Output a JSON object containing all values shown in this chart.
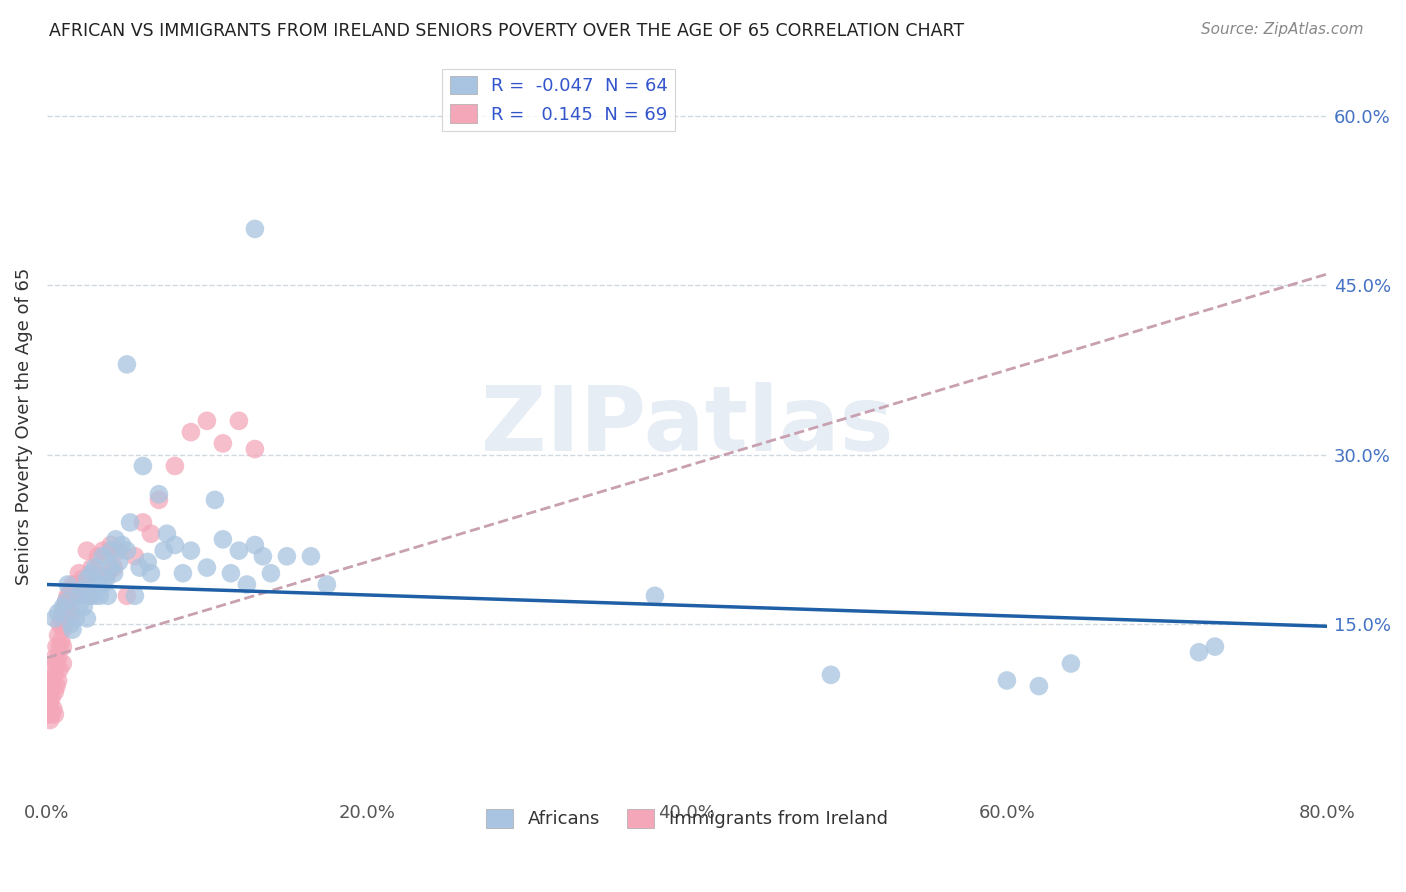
{
  "title": "AFRICAN VS IMMIGRANTS FROM IRELAND SENIORS POVERTY OVER THE AGE OF 65 CORRELATION CHART",
  "source": "Source: ZipAtlas.com",
  "ylabel": "Seniors Poverty Over the Age of 65",
  "xlim": [
    0,
    0.8
  ],
  "ylim": [
    0,
    0.65
  ],
  "yticks": [
    0.15,
    0.3,
    0.45,
    0.6
  ],
  "ytick_labels": [
    "15.0%",
    "30.0%",
    "45.0%",
    "60.0%"
  ],
  "xticks": [
    0.0,
    0.2,
    0.4,
    0.6,
    0.8
  ],
  "xtick_labels": [
    "0.0%",
    "20.0%",
    "40.0%",
    "60.0%",
    "80.0%"
  ],
  "african_color": "#a8c4e0",
  "ireland_color": "#f4a7b9",
  "african_R": -0.047,
  "african_N": 64,
  "ireland_R": 0.145,
  "ireland_N": 69,
  "trend_african_color": "#1f5fa6",
  "trend_ireland_color": "#c8a0b0",
  "background_color": "#ffffff",
  "watermark": "ZIPatlas",
  "africans_x": [
    0.005,
    0.007,
    0.01,
    0.012,
    0.013,
    0.015,
    0.016,
    0.018,
    0.02,
    0.02,
    0.022,
    0.023,
    0.025,
    0.025,
    0.027,
    0.028,
    0.03,
    0.03,
    0.032,
    0.033,
    0.035,
    0.035,
    0.037,
    0.038,
    0.04,
    0.04,
    0.042,
    0.043,
    0.045,
    0.047,
    0.05,
    0.052,
    0.055,
    0.058,
    0.06,
    0.063,
    0.065,
    0.07,
    0.073,
    0.075,
    0.08,
    0.085,
    0.09,
    0.1,
    0.105,
    0.11,
    0.115,
    0.12,
    0.125,
    0.13,
    0.135,
    0.14,
    0.15,
    0.165,
    0.175,
    0.05,
    0.13,
    0.38,
    0.49,
    0.6,
    0.62,
    0.64,
    0.72,
    0.73
  ],
  "africans_y": [
    0.155,
    0.16,
    0.165,
    0.17,
    0.185,
    0.15,
    0.145,
    0.155,
    0.175,
    0.165,
    0.18,
    0.165,
    0.19,
    0.155,
    0.175,
    0.195,
    0.175,
    0.2,
    0.185,
    0.175,
    0.21,
    0.185,
    0.19,
    0.175,
    0.2,
    0.215,
    0.195,
    0.225,
    0.205,
    0.22,
    0.215,
    0.24,
    0.175,
    0.2,
    0.29,
    0.205,
    0.195,
    0.265,
    0.215,
    0.23,
    0.22,
    0.195,
    0.215,
    0.2,
    0.26,
    0.225,
    0.195,
    0.215,
    0.185,
    0.22,
    0.21,
    0.195,
    0.21,
    0.21,
    0.185,
    0.38,
    0.5,
    0.175,
    0.105,
    0.1,
    0.095,
    0.115,
    0.125,
    0.13
  ],
  "ireland_x": [
    0.001,
    0.001,
    0.002,
    0.002,
    0.002,
    0.003,
    0.003,
    0.003,
    0.004,
    0.004,
    0.004,
    0.005,
    0.005,
    0.005,
    0.005,
    0.006,
    0.006,
    0.006,
    0.007,
    0.007,
    0.007,
    0.008,
    0.008,
    0.008,
    0.009,
    0.009,
    0.01,
    0.01,
    0.01,
    0.01,
    0.011,
    0.011,
    0.012,
    0.012,
    0.013,
    0.013,
    0.014,
    0.014,
    0.015,
    0.015,
    0.016,
    0.017,
    0.018,
    0.019,
    0.02,
    0.021,
    0.022,
    0.023,
    0.025,
    0.027,
    0.028,
    0.03,
    0.032,
    0.035,
    0.038,
    0.04,
    0.042,
    0.045,
    0.05,
    0.055,
    0.06,
    0.065,
    0.07,
    0.08,
    0.09,
    0.1,
    0.11,
    0.12,
    0.13
  ],
  "ireland_y": [
    0.085,
    0.07,
    0.095,
    0.08,
    0.065,
    0.1,
    0.085,
    0.07,
    0.11,
    0.095,
    0.075,
    0.12,
    0.105,
    0.09,
    0.07,
    0.13,
    0.115,
    0.095,
    0.14,
    0.12,
    0.1,
    0.15,
    0.13,
    0.11,
    0.155,
    0.135,
    0.16,
    0.145,
    0.13,
    0.115,
    0.165,
    0.15,
    0.17,
    0.155,
    0.175,
    0.16,
    0.175,
    0.165,
    0.18,
    0.16,
    0.185,
    0.175,
    0.18,
    0.185,
    0.195,
    0.175,
    0.19,
    0.185,
    0.215,
    0.175,
    0.2,
    0.195,
    0.21,
    0.215,
    0.195,
    0.22,
    0.2,
    0.215,
    0.175,
    0.21,
    0.24,
    0.23,
    0.26,
    0.29,
    0.32,
    0.33,
    0.31,
    0.33,
    0.305
  ],
  "african_trend_x": [
    0.0,
    0.8
  ],
  "african_trend_y": [
    0.185,
    0.148
  ],
  "ireland_trend_x": [
    0.0,
    0.8
  ],
  "ireland_trend_y": [
    0.12,
    0.46
  ]
}
